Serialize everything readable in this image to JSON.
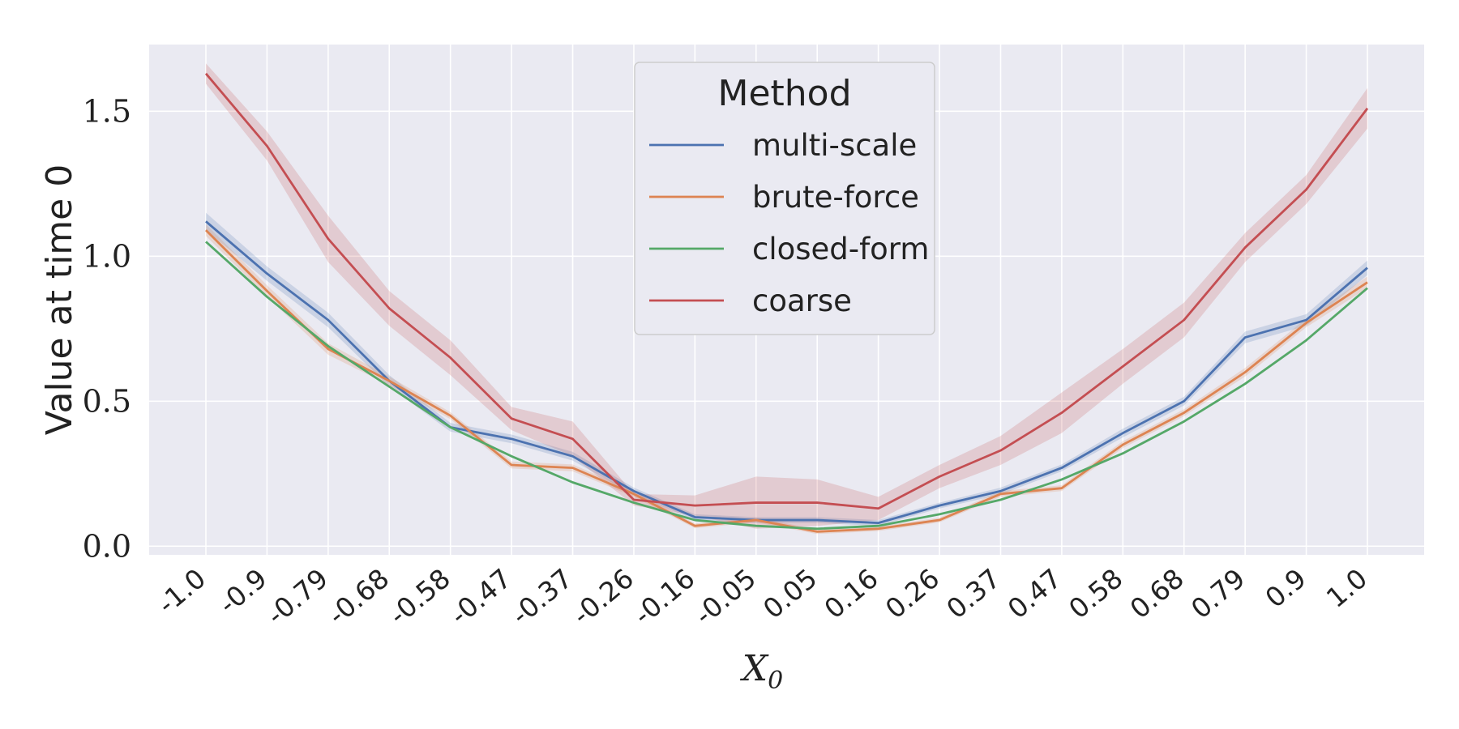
{
  "chart_data": {
    "type": "line",
    "title": "",
    "xlabel": "X",
    "xlabel_sub": "0",
    "ylabel": "Value at time 0",
    "ylim": [
      -0.03,
      1.73
    ],
    "yticks": [
      0.0,
      0.5,
      1.0,
      1.5
    ],
    "ytick_labels": [
      "0.0",
      "0.5",
      "1.0",
      "1.5"
    ],
    "grid": true,
    "legend": {
      "title": "Method",
      "position": "top-center"
    },
    "categories": [
      "-1.0",
      "-0.9",
      "-0.79",
      "-0.68",
      "-0.58",
      "-0.47",
      "-0.37",
      "-0.26",
      "-0.16",
      "-0.05",
      "0.05",
      "0.16",
      "0.26",
      "0.37",
      "0.47",
      "0.58",
      "0.68",
      "0.79",
      "0.9",
      "1.0"
    ],
    "series": [
      {
        "name": "multi-scale",
        "color": "#4c72b0",
        "values": [
          1.12,
          0.94,
          0.78,
          0.57,
          0.41,
          0.37,
          0.31,
          0.19,
          0.1,
          0.09,
          0.09,
          0.08,
          0.14,
          0.19,
          0.27,
          0.39,
          0.5,
          0.72,
          0.78,
          0.96
        ],
        "ci": [
          0.03,
          0.025,
          0.025,
          0.02,
          0.015,
          0.015,
          0.015,
          0.012,
          0.01,
          0.01,
          0.01,
          0.01,
          0.01,
          0.012,
          0.012,
          0.015,
          0.015,
          0.02,
          0.02,
          0.025
        ]
      },
      {
        "name": "brute-force",
        "color": "#dd8452",
        "values": [
          1.09,
          0.88,
          0.68,
          0.57,
          0.45,
          0.28,
          0.27,
          0.18,
          0.07,
          0.09,
          0.05,
          0.06,
          0.09,
          0.18,
          0.2,
          0.35,
          0.46,
          0.6,
          0.77,
          0.91
        ],
        "ci": [
          0.02,
          0.02,
          0.02,
          0.015,
          0.012,
          0.012,
          0.012,
          0.01,
          0.008,
          0.008,
          0.008,
          0.008,
          0.008,
          0.01,
          0.01,
          0.012,
          0.012,
          0.015,
          0.015,
          0.02
        ]
      },
      {
        "name": "closed-form",
        "color": "#55a868",
        "values": [
          1.05,
          0.86,
          0.69,
          0.55,
          0.41,
          0.31,
          0.22,
          0.15,
          0.09,
          0.07,
          0.06,
          0.07,
          0.11,
          0.16,
          0.23,
          0.32,
          0.43,
          0.56,
          0.71,
          0.89
        ]
      },
      {
        "name": "coarse",
        "color": "#c44e52",
        "values": [
          1.63,
          1.38,
          1.06,
          0.82,
          0.65,
          0.44,
          0.37,
          0.16,
          0.14,
          0.15,
          0.15,
          0.13,
          0.24,
          0.33,
          0.46,
          0.62,
          0.78,
          1.03,
          1.23,
          1.51
        ],
        "ci": [
          0.035,
          0.05,
          0.08,
          0.06,
          0.06,
          0.04,
          0.06,
          0.02,
          0.035,
          0.09,
          0.08,
          0.04,
          0.04,
          0.05,
          0.07,
          0.06,
          0.06,
          0.05,
          0.05,
          0.07
        ]
      }
    ]
  }
}
